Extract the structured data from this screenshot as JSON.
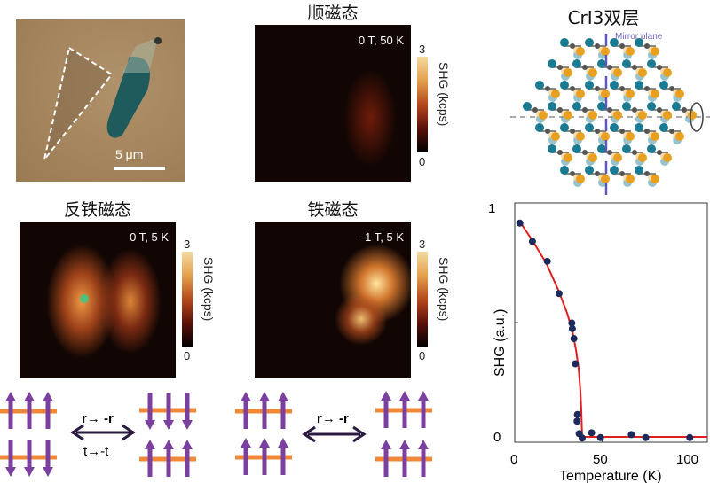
{
  "microscope": {
    "scale_bar": "5 μm",
    "colors": {
      "substrate": "#a8885f",
      "flake": "#1f5a5c"
    }
  },
  "panels": [
    {
      "title": "顺磁态",
      "condition": "0 T, 50 K",
      "colorbar": {
        "max": "3",
        "min": "0",
        "label": "SHG (kcps)"
      }
    },
    {
      "title": "反铁磁态",
      "condition": "0 T, 5 K",
      "colorbar": {
        "max": "3",
        "min": "0",
        "label": "SHG (kcps)"
      }
    },
    {
      "title": "铁磁态",
      "condition": "-1 T, 5 K",
      "colorbar": {
        "max": "3",
        "min": "0",
        "label": "SHG (kcps)"
      }
    }
  ],
  "lattice": {
    "title": "CrI3双层",
    "mirror_label": "Mirror plane",
    "colors": {
      "top_I": "#e8a020",
      "bottom_I": "#1a7a92",
      "mirror": "#5a5ab8"
    }
  },
  "symmetry": {
    "afm_ops": [
      "r→ -r",
      "t→-t"
    ],
    "fm_ops": [
      "r→ -r"
    ],
    "colors": {
      "spin": "#7b3fa0",
      "layer": "#f0883a",
      "arrow": "#2a1a40"
    }
  },
  "chart_data": {
    "type": "scatter",
    "xlabel": "Temperature (K)",
    "ylabel": "SHG (a.u.)",
    "xlim": [
      0,
      110
    ],
    "ylim": [
      0,
      1
    ],
    "xticks": [
      "0",
      "50",
      "100"
    ],
    "yticks": [
      "0",
      "1"
    ],
    "points": {
      "x": [
        2.9,
        10.1,
        18.6,
        25.3,
        32.6,
        32.9,
        33.8,
        34.6,
        35.8,
        35.6,
        36.8,
        38.5,
        43.9,
        49,
        66.6,
        74.8,
        100
      ],
      "y": [
        0.935,
        0.855,
        0.768,
        0.627,
        0.498,
        0.473,
        0.43,
        0.32,
        0.098,
        0.069,
        0.014,
        -0.005,
        0.018,
        -0.003,
        0.01,
        -0.003,
        -0.003
      ]
    },
    "fit": {
      "x": [
        3,
        10,
        18,
        25,
        30,
        33,
        35,
        36.5,
        37.5,
        38,
        38.5,
        50,
        75,
        100,
        110
      ],
      "y": [
        0.94,
        0.86,
        0.76,
        0.64,
        0.54,
        0.46,
        0.38,
        0.3,
        0.2,
        0.12,
        0.0,
        0.0,
        0.0,
        0.0,
        0.0
      ]
    },
    "colors": {
      "points": "#1c2a5c",
      "fit": "#e02020"
    }
  }
}
